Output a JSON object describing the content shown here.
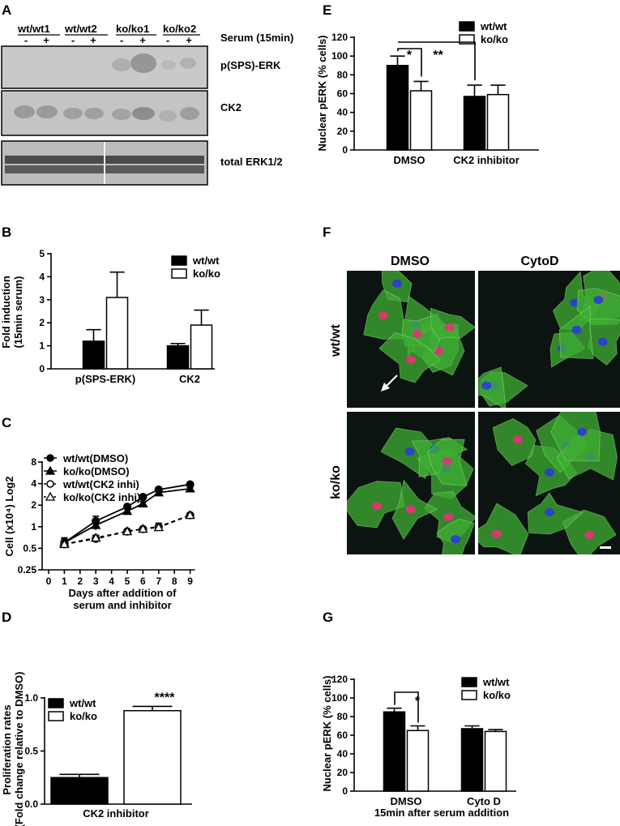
{
  "panel_letters": {
    "A": "A",
    "B": "B",
    "C": "C",
    "D": "D",
    "E": "E",
    "F": "F",
    "G": "G"
  },
  "blot": {
    "groups": [
      "wt/wt1",
      "wt/wt2",
      "ko/ko1",
      "ko/ko2"
    ],
    "signs": [
      "-",
      "+",
      "-",
      "+",
      "-",
      "+",
      "-",
      "+"
    ],
    "serum_label": "Serum (15min)",
    "bands": [
      "p(SPS)-ERK",
      "CK2",
      "total ERK1/2"
    ]
  },
  "micro": {
    "col_titles": [
      "DMSO",
      "CytoD"
    ],
    "row_labels": [
      "wt/wt",
      "ko/ko"
    ],
    "colors": {
      "actin": "#3fae34",
      "nucleus": "#2b3cd8",
      "perk": "#e8307a"
    }
  },
  "chart_data": [
    {
      "id": "E",
      "type": "bar",
      "categories": [
        "DMSO",
        "CK2 inhibitor"
      ],
      "series": [
        {
          "name": "wt/wt",
          "values": [
            90,
            57
          ],
          "errors": [
            10,
            12
          ],
          "color": "#000000"
        },
        {
          "name": "ko/ko",
          "values": [
            63,
            59
          ],
          "errors": [
            10,
            10
          ],
          "color": "#ffffff"
        }
      ],
      "ylabel": "Nuclear pERK (% cells)",
      "ylim": [
        0,
        120
      ],
      "yticks": [
        "0",
        "20",
        "40",
        "60",
        "80",
        "100",
        "120"
      ],
      "annotations": [
        "*",
        "**"
      ],
      "legend": "top-right"
    },
    {
      "id": "B",
      "type": "bar",
      "categories": [
        "p(SPS-ERK)",
        "CK2"
      ],
      "series": [
        {
          "name": "wt/wt",
          "values": [
            1.2,
            1.0
          ],
          "errors": [
            0.5,
            0.1
          ],
          "color": "#000000"
        },
        {
          "name": "ko/ko",
          "values": [
            3.1,
            1.9
          ],
          "errors": [
            1.1,
            0.65
          ],
          "color": "#ffffff"
        }
      ],
      "ylabel": "Fold induction (15min serum)",
      "ylabel_lines": [
        "Fold induction",
        "(15min serum)"
      ],
      "ylim": [
        0,
        5
      ],
      "yticks": [
        "0",
        "1",
        "2",
        "3",
        "4",
        "5"
      ],
      "legend": "top-right"
    },
    {
      "id": "C",
      "type": "line",
      "x": [
        1,
        3,
        5,
        6,
        7,
        9
      ],
      "series": [
        {
          "name": "wt/wt(DMSO)",
          "values": [
            0.6,
            1.2,
            1.9,
            2.6,
            3.3,
            3.9
          ],
          "errors": [
            0.1,
            0.2,
            0.15,
            0.15,
            0.15,
            0.15
          ],
          "marker": "circle-filled",
          "line": "solid"
        },
        {
          "name": "ko/ko(DMSO)",
          "values": [
            0.6,
            1.05,
            1.65,
            2.1,
            3.0,
            3.4
          ],
          "errors": [
            0.08,
            0.15,
            0.15,
            0.15,
            0.15,
            0.15
          ],
          "marker": "triangle-filled",
          "line": "solid"
        },
        {
          "name": "wt/wt(CK2 inhi)",
          "values": [
            0.57,
            0.68,
            0.86,
            0.93,
            1.0,
            1.45
          ],
          "errors": [
            0.05,
            0.08,
            0.05,
            0.05,
            0.12,
            0.05
          ],
          "marker": "circle-open",
          "line": "dashed"
        },
        {
          "name": "ko/ko(CK2 inhi)",
          "values": [
            0.57,
            0.7,
            0.86,
            0.93,
            0.98,
            1.45
          ],
          "errors": [
            0.05,
            0.06,
            0.05,
            0.05,
            0.08,
            0.05
          ],
          "marker": "triangle-open",
          "line": "dashed"
        }
      ],
      "ylabel": "Cell (x10⁴) Log2",
      "xlabel": "Days after addition of serum and inhibitor",
      "xlabel_lines": [
        "Days after addition of",
        "serum and inhibitor"
      ],
      "xlim": [
        0,
        9
      ],
      "xticks": [
        "0",
        "1",
        "2",
        "3",
        "4",
        "5",
        "6",
        "7",
        "8",
        "9"
      ],
      "ylim": [
        0.25,
        8
      ],
      "yscale": "log2",
      "yticks": [
        "0.25",
        "0.5",
        "1",
        "2",
        "4",
        "8"
      ],
      "legend": "top-left"
    },
    {
      "id": "D",
      "type": "bar",
      "categories": [
        "CK2 inhibitor"
      ],
      "series": [
        {
          "name": "wt/wt",
          "values": [
            0.25
          ],
          "errors": [
            0.03
          ],
          "color": "#000000"
        },
        {
          "name": "ko/ko",
          "values": [
            0.88
          ],
          "errors": [
            0.04
          ],
          "color": "#ffffff"
        }
      ],
      "ylabel": "Proliferation rates (Fold change relative to DMSO)",
      "ylabel_lines": [
        "Proliferation rates",
        "(Fold change relative to DMSO)"
      ],
      "ylim": [
        0,
        1.0
      ],
      "yticks": [
        "0.0",
        "0.5",
        "1.0"
      ],
      "annotations": [
        "****"
      ],
      "legend": "top-left"
    },
    {
      "id": "G",
      "type": "bar",
      "categories": [
        "DMSO",
        "Cyto D"
      ],
      "series": [
        {
          "name": "wt/wt",
          "values": [
            85,
            67
          ],
          "errors": [
            4,
            3
          ],
          "color": "#000000"
        },
        {
          "name": "ko/ko",
          "values": [
            65,
            64
          ],
          "errors": [
            5,
            2
          ],
          "color": "#ffffff"
        }
      ],
      "ylabel": "Nuclear pERK (% cells)",
      "xlabel": "15min after serum addition",
      "ylim": [
        0,
        120
      ],
      "yticks": [
        "0",
        "20",
        "40",
        "60",
        "80",
        "100",
        "120"
      ],
      "annotations": [
        "*"
      ],
      "legend": "top-right"
    }
  ]
}
